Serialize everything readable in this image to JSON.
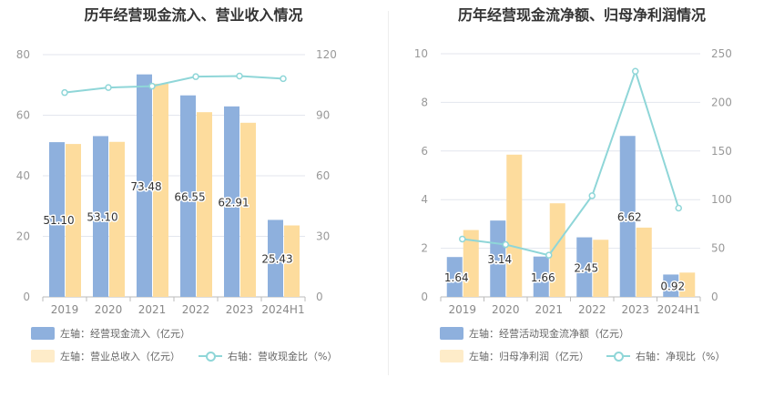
{
  "chart_data": [
    {
      "type": "bar",
      "title": "历年经营现金流入、营业收入情况",
      "categories": [
        "2019",
        "2020",
        "2021",
        "2022",
        "2023",
        "2024H1"
      ],
      "left_axis": {
        "ylim": [
          0,
          80
        ],
        "ticks": [
          0,
          20,
          40,
          60,
          80
        ]
      },
      "right_axis": {
        "ylim": [
          0,
          120
        ],
        "ticks": [
          0,
          30,
          60,
          90,
          120
        ]
      },
      "grid": true,
      "legend_position": "bottom-left",
      "series": [
        {
          "name": "左轴：经营现金流入（亿元）",
          "type": "bar",
          "axis": "left",
          "color": "#8eb0dd",
          "values": [
            51.1,
            53.1,
            73.48,
            66.55,
            62.91,
            25.43
          ],
          "labels": [
            "51.10",
            "53.10",
            "73.48",
            "66.55",
            "62.91",
            "25.43"
          ]
        },
        {
          "name": "左轴：营业总收入（亿元）",
          "type": "bar",
          "axis": "left",
          "color": "#fddc9d",
          "values": [
            50.5,
            51.2,
            70.4,
            61.0,
            57.5,
            23.6
          ],
          "labels": []
        },
        {
          "name": "右轴：营收现金比（%）",
          "type": "line",
          "axis": "right",
          "color": "#8fd6d8",
          "values": [
            101.2,
            103.7,
            104.4,
            109.1,
            109.4,
            108.1
          ],
          "labels": []
        }
      ]
    },
    {
      "type": "bar",
      "title": "历年经营现金流净额、归母净利润情况",
      "categories": [
        "2019",
        "2020",
        "2021",
        "2022",
        "2023",
        "2024H1"
      ],
      "left_axis": {
        "ylim": [
          0,
          10
        ],
        "ticks": [
          0,
          2,
          4,
          6,
          8,
          10
        ]
      },
      "right_axis": {
        "ylim": [
          0,
          250
        ],
        "ticks": [
          0,
          50,
          100,
          150,
          200,
          250
        ]
      },
      "grid": true,
      "legend_position": "bottom-left",
      "series": [
        {
          "name": "左轴：经营活动现金流净额（亿元）",
          "type": "bar",
          "axis": "left",
          "color": "#8eb0dd",
          "values": [
            1.64,
            3.14,
            1.66,
            2.45,
            6.62,
            0.92
          ],
          "labels": [
            "1.64",
            "3.14",
            "1.66",
            "2.45",
            "6.62",
            "0.92"
          ]
        },
        {
          "name": "左轴：归母净利润（亿元）",
          "type": "bar",
          "axis": "left",
          "color": "#fddc9d",
          "values": [
            2.75,
            5.85,
            3.85,
            2.35,
            2.85,
            1.0
          ],
          "labels": []
        },
        {
          "name": "右轴：净现比（%）",
          "type": "line",
          "axis": "right",
          "color": "#8fd6d8",
          "values": [
            59.5,
            53.8,
            42.9,
            104.0,
            232.0,
            91.3
          ],
          "labels": []
        }
      ]
    }
  ]
}
